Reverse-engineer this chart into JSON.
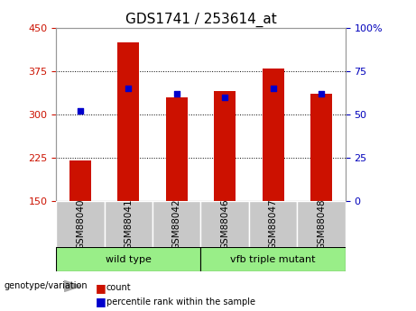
{
  "title": "GDS1741 / 253614_at",
  "categories": [
    "GSM88040",
    "GSM88041",
    "GSM88042",
    "GSM88046",
    "GSM88047",
    "GSM88048"
  ],
  "count_values": [
    220,
    425,
    330,
    340,
    380,
    335
  ],
  "percentile_values": [
    52,
    65,
    62,
    60,
    65,
    62
  ],
  "ylim_left": [
    150,
    450
  ],
  "ylim_right": [
    0,
    100
  ],
  "yticks_left": [
    150,
    225,
    300,
    375,
    450
  ],
  "yticks_right": [
    0,
    25,
    50,
    75,
    100
  ],
  "bar_bottom": 150,
  "bar_width": 0.45,
  "count_color": "#cc1100",
  "percentile_color": "#0000cc",
  "grid_color": "#000000",
  "left_label_color": "#cc1100",
  "right_label_color": "#0000bb",
  "group1_label": "wild type",
  "group2_label": "vfb triple mutant",
  "group_bg_color": "#99ee88",
  "tick_bg_color": "#c8c8c8",
  "genotype_label": "genotype/variation",
  "legend_count": "count",
  "legend_percentile": "percentile rank within the sample",
  "title_fontsize": 11,
  "tick_fontsize": 8,
  "small_fontsize": 7
}
